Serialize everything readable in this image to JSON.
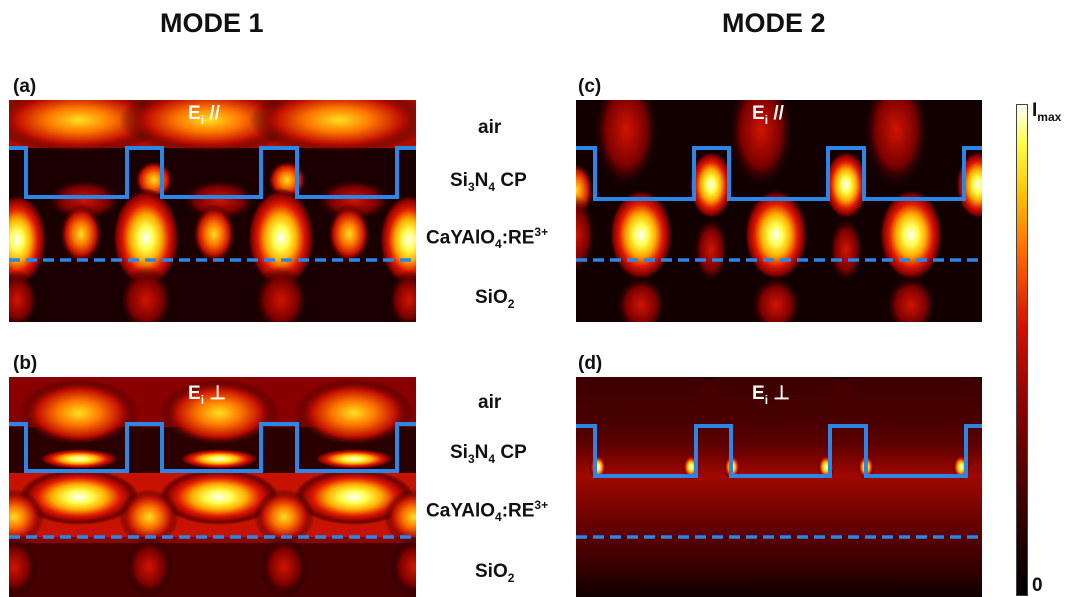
{
  "modes": {
    "mode1": "MODE 1",
    "mode2": "MODE 2"
  },
  "panels": {
    "a": {
      "label": "(a)",
      "pol_main": "E",
      "pol_sub": "i",
      "pol_sym": "//"
    },
    "b": {
      "label": "(b)",
      "pol_main": "E",
      "pol_sub": "i",
      "pol_sym": "⊥"
    },
    "c": {
      "label": "(c)",
      "pol_main": "E",
      "pol_sub": "i",
      "pol_sym": "//"
    },
    "d": {
      "label": "(d)",
      "pol_main": "E",
      "pol_sub": "i",
      "pol_sym": "⊥"
    }
  },
  "layers": {
    "air": "air",
    "cp_pre": "Si",
    "cp_sub1": "3",
    "cp_mid": "N",
    "cp_sub2": "4",
    "cp_post": " CP",
    "act_pre": "CaYAlO",
    "act_sub": "4",
    "act_mid": ":RE",
    "act_sup": "3+",
    "sub_pre": "SiO",
    "sub_sub": "2"
  },
  "colorbar": {
    "max_main": "I",
    "max_sub": "max",
    "min": "0"
  },
  "colors": {
    "outline": "#2b86e6",
    "colormap": "hot"
  }
}
